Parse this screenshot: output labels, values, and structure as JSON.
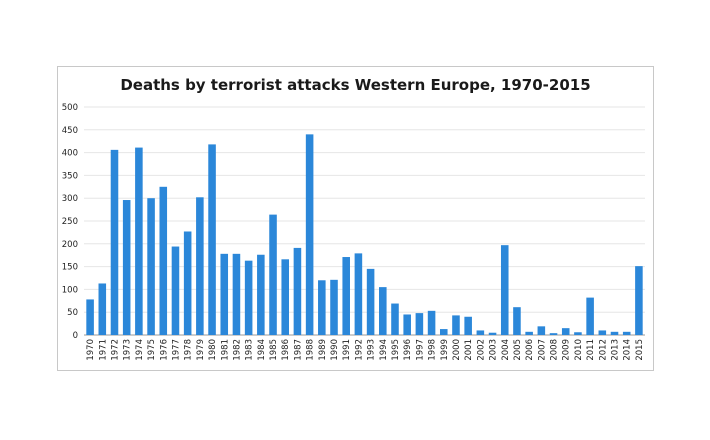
{
  "chart_data": {
    "type": "bar",
    "title": "Deaths by terrorist attacks Western Europe, 1970-2015",
    "xlabel": "",
    "ylabel": "",
    "ylim": [
      0,
      500
    ],
    "yticks": [
      0,
      50,
      100,
      150,
      200,
      250,
      300,
      350,
      400,
      450,
      500
    ],
    "grid": true,
    "legend": "none",
    "bar_color": "#2b87d9",
    "categories": [
      "1970",
      "1971",
      "1972",
      "1973",
      "1974",
      "1975",
      "1976",
      "1977",
      "1978",
      "1979",
      "1980",
      "1981",
      "1982",
      "1983",
      "1984",
      "1985",
      "1986",
      "1987",
      "1988",
      "1989",
      "1990",
      "1991",
      "1992",
      "1993",
      "1994",
      "1995",
      "1996",
      "1997",
      "1998",
      "1999",
      "2000",
      "2001",
      "2002",
      "2003",
      "2004",
      "2005",
      "2006",
      "2007",
      "2008",
      "2009",
      "2010",
      "2011",
      "2012",
      "2013",
      "2014",
      "2015"
    ],
    "values": [
      78,
      113,
      406,
      296,
      411,
      300,
      325,
      194,
      227,
      302,
      418,
      178,
      178,
      163,
      176,
      264,
      166,
      191,
      440,
      120,
      121,
      171,
      179,
      145,
      105,
      69,
      45,
      48,
      53,
      13,
      43,
      40,
      10,
      5,
      197,
      61,
      7,
      19,
      4,
      15,
      6,
      82,
      10,
      7,
      7,
      151
    ]
  }
}
